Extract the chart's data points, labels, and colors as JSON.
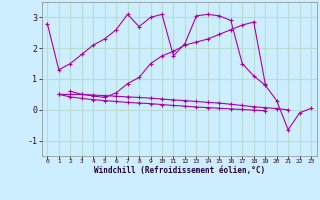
{
  "xlabel": "Windchill (Refroidissement éolien,°C)",
  "background_color": "#cceeff",
  "grid_color": "#aaddcc",
  "line_color": "#aa00aa",
  "xlim": [
    -0.5,
    23.5
  ],
  "ylim": [
    -1.5,
    3.5
  ],
  "yticks": [
    -1,
    0,
    1,
    2,
    3
  ],
  "xticks": [
    0,
    1,
    2,
    3,
    4,
    5,
    6,
    7,
    8,
    9,
    10,
    11,
    12,
    13,
    14,
    15,
    16,
    17,
    18,
    19,
    20,
    21,
    22,
    23
  ],
  "lines": [
    [
      2.8,
      1.3,
      1.5,
      1.8,
      2.1,
      2.3,
      2.6,
      3.1,
      2.7,
      3.0,
      3.1,
      1.75,
      2.15,
      3.05,
      3.1,
      3.05,
      2.9,
      1.5,
      1.1,
      0.8,
      0.3,
      -0.65,
      -0.1,
      0.05
    ],
    [
      null,
      null,
      0.6,
      0.5,
      0.45,
      0.4,
      0.55,
      0.85,
      1.05,
      1.5,
      1.75,
      1.9,
      2.1,
      2.2,
      2.3,
      2.45,
      2.6,
      2.75,
      2.85,
      0.85,
      null,
      null,
      null,
      null
    ],
    [
      null,
      0.5,
      0.5,
      0.5,
      0.48,
      0.46,
      0.44,
      0.42,
      0.4,
      0.38,
      0.35,
      0.32,
      0.3,
      0.27,
      0.24,
      0.22,
      0.18,
      0.14,
      0.1,
      0.07,
      0.04,
      0.0,
      null,
      null
    ],
    [
      null,
      0.5,
      0.42,
      0.37,
      0.33,
      0.3,
      0.27,
      0.24,
      0.22,
      0.2,
      0.17,
      0.14,
      0.12,
      0.09,
      0.07,
      0.05,
      0.03,
      0.01,
      -0.01,
      -0.03,
      null,
      null,
      null,
      null
    ]
  ]
}
